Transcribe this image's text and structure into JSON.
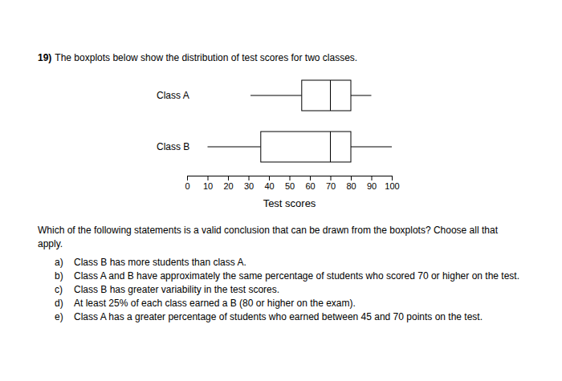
{
  "question": {
    "number": "19)",
    "text": "The boxplots below show the distribution of test scores for two classes."
  },
  "chart_data": {
    "type": "box",
    "orientation": "horizontal",
    "categories": [
      "Class A",
      "Class B"
    ],
    "boxes": [
      {
        "min": 31,
        "q1": 56,
        "median": 70,
        "q3": 80,
        "max": 90
      },
      {
        "min": 10,
        "q1": 36,
        "median": 70,
        "q3": 80,
        "max": 100
      }
    ],
    "xlabel": "Test scores",
    "xlim": [
      0,
      100
    ],
    "xticks": [
      0,
      10,
      20,
      30,
      40,
      50,
      60,
      70,
      80,
      90,
      100
    ]
  },
  "prompt": "Which of the following statements is a valid conclusion that can be drawn from the boxplots? Choose all that apply.",
  "options": [
    {
      "letter": "a)",
      "text": "Class B has more students than class A."
    },
    {
      "letter": "b)",
      "text": "Class A and B have approximately the same percentage of students who scored 70 or higher on the test."
    },
    {
      "letter": "c)",
      "text": "Class B has greater variability in the test scores."
    },
    {
      "letter": "d)",
      "text": "At least 25% of each class earned a B (80 or higher on the exam)."
    },
    {
      "letter": "e)",
      "text": "Class A has a greater percentage of students who earned between 45 and 70 points on the test."
    }
  ]
}
